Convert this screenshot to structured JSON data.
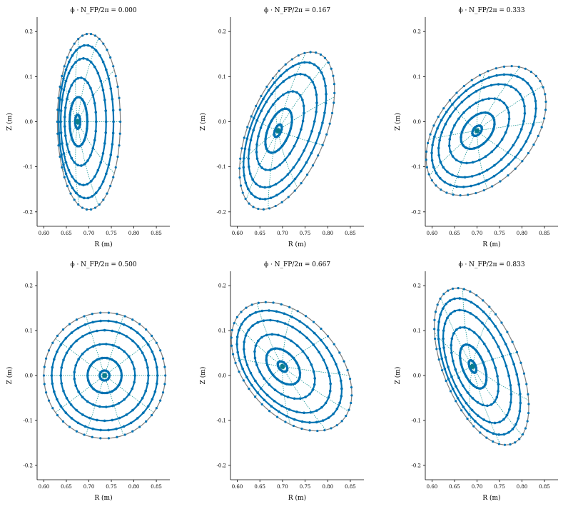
{
  "chart_data": {
    "type": "scatter",
    "x_ticks": [
      0.6,
      0.65,
      0.7,
      0.75,
      0.8,
      0.85
    ],
    "y_ticks": [
      -0.2,
      -0.1,
      0.0,
      0.1,
      0.2
    ],
    "xlim": [
      0.585,
      0.88
    ],
    "ylim": [
      -0.232,
      0.232
    ],
    "grid": false,
    "legend": "none",
    "colors": {
      "surfaces": "#0072b2",
      "rays": "#008b8b",
      "boundary": "#7f7f7f"
    },
    "radial_fractions": [
      0.08,
      0.28,
      0.5,
      0.72,
      0.87,
      1.0
    ],
    "panels": [
      {
        "title": "ϕ · N_FP/2π = 0.000",
        "xlabel": "R (m)",
        "ylabel": "Z (m)",
        "center": [
          0.7,
          0.0
        ],
        "a": 0.07,
        "b": 0.195,
        "tilt_deg": 0,
        "shift": 0.025
      },
      {
        "title": "ϕ · N_FP/2π = 0.167",
        "xlabel": "R (m)",
        "ylabel": "Z (m)",
        "center": [
          0.71,
          -0.02
        ],
        "a": 0.085,
        "b": 0.185,
        "tilt_deg": 22,
        "shift": 0.02
      },
      {
        "title": "ϕ · N_FP/2π = 0.333",
        "xlabel": "R (m)",
        "ylabel": "Z (m)",
        "center": [
          0.72,
          -0.02
        ],
        "a": 0.105,
        "b": 0.165,
        "tilt_deg": 40,
        "shift": 0.02
      },
      {
        "title": "ϕ · N_FP/2π = 0.500",
        "xlabel": "R (m)",
        "ylabel": "Z (m)",
        "center": [
          0.735,
          0.0
        ],
        "a": 0.135,
        "b": 0.14,
        "tilt_deg": 0,
        "shift": 0.0
      },
      {
        "title": "ϕ · N_FP/2π = 0.667",
        "xlabel": "R (m)",
        "ylabel": "Z (m)",
        "center": [
          0.72,
          0.02
        ],
        "a": 0.105,
        "b": 0.165,
        "tilt_deg": -40,
        "shift": 0.02
      },
      {
        "title": "ϕ · N_FP/2π = 0.833",
        "xlabel": "R (m)",
        "ylabel": "Z (m)",
        "center": [
          0.71,
          0.02
        ],
        "a": 0.085,
        "b": 0.185,
        "tilt_deg": -22,
        "shift": 0.02
      }
    ]
  }
}
